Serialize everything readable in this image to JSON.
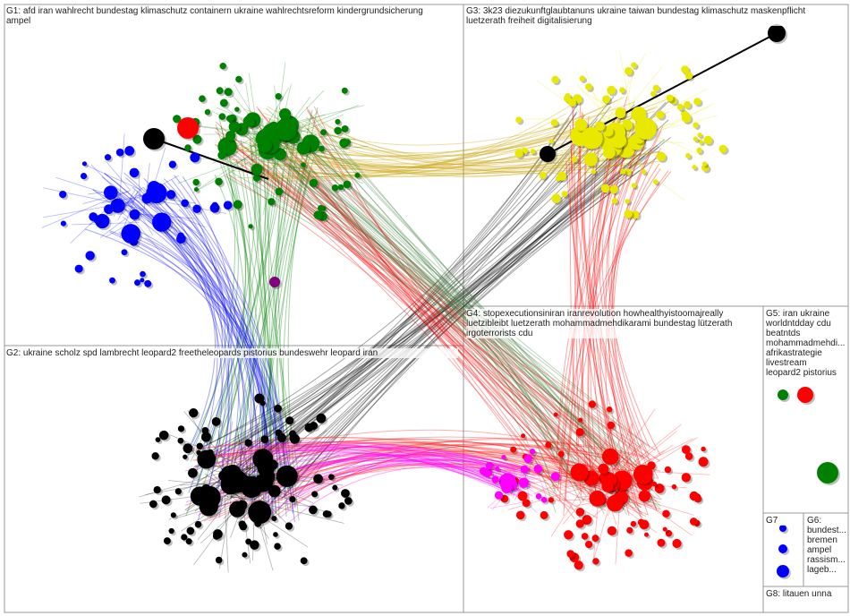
{
  "groups": [
    {
      "lines": [
        "G1: afd iran wahlrecht bundestag klimaschutz containern ukraine wahlrechtsreform kindergrundsicherung",
        "ampel"
      ]
    },
    {
      "lines": [
        "G2: ukraine scholz spd lambrecht leopard2 freetheleopards pistorius bundeswehr leopard iran"
      ]
    },
    {
      "lines": [
        "G3: 3k23 diezukunftglaubtanuns ukraine taiwan bundestag klimaschutz maskenpflicht",
        "luetzerath freiheit digitalisierung"
      ]
    },
    {
      "lines": [
        "G4: stopexecutionsiniran iranrevolution howhealthyistoomajreally",
        "luetzibleibt luetzerath mohammadmehdikarami bundestag lützerath",
        "irgoterrorists cdu"
      ]
    },
    {
      "lines": [
        "G5: iran ukraine",
        "worldntdday cdu",
        "beatntds",
        "mohammadmehdi...",
        "afrikastrategie",
        "livestream",
        "leopard2 pistorius"
      ]
    },
    {
      "lines": [
        "G6:",
        "bundest...",
        "bremen",
        "ampel",
        "rassism...",
        "lageb..."
      ]
    },
    {
      "lines": [
        "G7"
      ]
    },
    {
      "lines": [
        "G8: litauen unna"
      ]
    }
  ]
}
